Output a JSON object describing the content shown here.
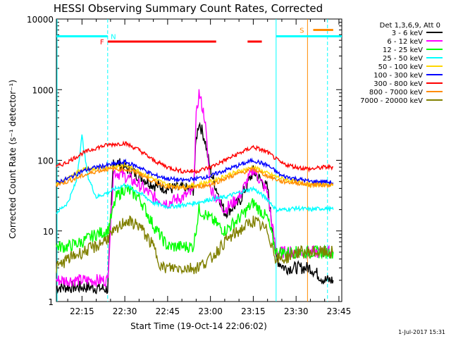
{
  "chart_data": {
    "type": "line",
    "title": "HESSI Observing Summary Count Rates, Corrected",
    "xlabel": "Start Time (19-Oct-14 22:06:02)",
    "ylabel": "Corrected Count Rate (s⁻¹ detector⁻¹)",
    "y_scale": "log",
    "ylim": [
      1,
      10000
    ],
    "xlim_minutes": [
      22.1,
      23.76
    ],
    "x_ticks": [
      "22:15",
      "22:30",
      "22:45",
      "23:00",
      "23:15",
      "23:30",
      "23:45"
    ],
    "y_ticks": [
      "1",
      "10",
      "100",
      "1000",
      "10000"
    ],
    "legend_title": "Det 1,3,6,9, Att 0",
    "legend_position": "top-right",
    "timestamp": "1-Jul-2017 15:31",
    "annotations": [
      {
        "label": "F",
        "color": "#ff0000"
      },
      {
        "label": "N",
        "color": "#00ffff"
      },
      {
        "label": "S",
        "color": "#ff8c00"
      }
    ],
    "flag_bars": [
      {
        "name": "F",
        "color": "#ff0000",
        "segments": [
          [
            "22:24",
            "23:02"
          ],
          [
            "23:13",
            "23:18"
          ]
        ],
        "y": 4800
      },
      {
        "name": "N",
        "color": "#00ffff",
        "segments": [
          [
            "22:06",
            "22:24"
          ],
          [
            "23:23",
            "23:46"
          ]
        ],
        "y": 5700
      },
      {
        "name": "S",
        "color": "#ff8c00",
        "segments": [
          [
            "23:36",
            "23:43"
          ]
        ],
        "y": 7000
      }
    ],
    "vlines": [
      {
        "time": "22:24",
        "color": "#00ffff",
        "style": "dashed"
      },
      {
        "time": "23:23",
        "color": "#00ffff",
        "style": "solid"
      },
      {
        "time": "23:34",
        "color": "#ff8c00",
        "style": "solid"
      },
      {
        "time": "23:41",
        "color": "#00ffff",
        "style": "dashed"
      }
    ],
    "series": [
      {
        "name": "3 - 6 keV",
        "color": "#000000",
        "x": [
          "22:06",
          "22:12",
          "22:18",
          "22:24",
          "22:26",
          "22:30",
          "22:35",
          "22:40",
          "22:45",
          "22:50",
          "22:54",
          "22:55",
          "22:56",
          "22:58",
          "23:00",
          "23:05",
          "23:10",
          "23:15",
          "23:20",
          "23:23",
          "23:26",
          "23:30",
          "23:35",
          "23:40",
          "23:43"
        ],
        "y": [
          1.6,
          1.6,
          1.6,
          1.5,
          100,
          80,
          60,
          45,
          40,
          40,
          38,
          200,
          350,
          200,
          70,
          18,
          25,
          70,
          40,
          4,
          3,
          3,
          3,
          2,
          2
        ]
      },
      {
        "name": "6 - 12 keV",
        "color": "#ff00ff",
        "x": [
          "22:06",
          "22:12",
          "22:18",
          "22:24",
          "22:26",
          "22:30",
          "22:35",
          "22:40",
          "22:45",
          "22:50",
          "22:54",
          "22:55",
          "22:56",
          "22:58",
          "23:00",
          "23:05",
          "23:10",
          "23:15",
          "23:20",
          "23:23",
          "23:26",
          "23:30",
          "23:35",
          "23:40",
          "23:43"
        ],
        "y": [
          2,
          2,
          2,
          2,
          70,
          60,
          45,
          30,
          25,
          30,
          35,
          400,
          900,
          400,
          40,
          20,
          30,
          75,
          35,
          5,
          5,
          5,
          5,
          5,
          5
        ]
      },
      {
        "name": "12 - 25 keV",
        "color": "#00ff00",
        "x": [
          "22:06",
          "22:10",
          "22:15",
          "22:20",
          "22:24",
          "22:27",
          "22:30",
          "22:35",
          "22:40",
          "22:45",
          "22:50",
          "22:54",
          "22:56",
          "23:00",
          "23:05",
          "23:10",
          "23:15",
          "23:20",
          "23:23",
          "23:26",
          "23:30",
          "23:35",
          "23:40",
          "23:43"
        ],
        "y": [
          6,
          6,
          7,
          9,
          10,
          30,
          40,
          30,
          12,
          6,
          6,
          6,
          20,
          15,
          10,
          15,
          25,
          15,
          5,
          5,
          5,
          5,
          5,
          5
        ]
      },
      {
        "name": "25 - 50 keV",
        "color": "#00ffff",
        "x": [
          "22:06",
          "22:10",
          "22:13",
          "22:15",
          "22:17",
          "22:20",
          "22:24",
          "22:27",
          "22:30",
          "22:35",
          "22:40",
          "22:45",
          "22:50",
          "22:55",
          "23:00",
          "23:05",
          "23:10",
          "23:15",
          "23:20",
          "23:23",
          "23:26",
          "23:30",
          "23:35",
          "23:40",
          "23:43"
        ],
        "y": [
          18,
          25,
          50,
          220,
          60,
          30,
          35,
          40,
          45,
          35,
          25,
          22,
          23,
          25,
          28,
          30,
          35,
          40,
          28,
          20,
          20,
          21,
          20,
          21,
          20
        ]
      },
      {
        "name": "50 - 100 keV",
        "color": "#ffd700",
        "x": [
          "22:06",
          "22:10",
          "22:15",
          "22:20",
          "22:24",
          "22:30",
          "22:35",
          "22:40",
          "22:45",
          "22:50",
          "22:55",
          "23:00",
          "23:05",
          "23:10",
          "23:15",
          "23:20",
          "23:25",
          "23:30",
          "23:35",
          "23:40",
          "23:43"
        ],
        "y": [
          45,
          55,
          75,
          75,
          80,
          85,
          70,
          55,
          45,
          42,
          45,
          50,
          60,
          70,
          80,
          65,
          55,
          50,
          45,
          45,
          45
        ]
      },
      {
        "name": "100 - 300 keV",
        "color": "#0000ff",
        "x": [
          "22:06",
          "22:10",
          "22:15",
          "22:20",
          "22:24",
          "22:30",
          "22:35",
          "22:40",
          "22:45",
          "22:50",
          "22:55",
          "23:00",
          "23:05",
          "23:10",
          "23:15",
          "23:20",
          "23:25",
          "23:30",
          "23:35",
          "23:40",
          "23:43"
        ],
        "y": [
          48,
          55,
          70,
          80,
          85,
          95,
          80,
          62,
          55,
          52,
          55,
          60,
          72,
          85,
          100,
          85,
          60,
          55,
          50,
          50,
          48
        ]
      },
      {
        "name": "300 - 800 keV",
        "color": "#ff0000",
        "x": [
          "22:06",
          "22:10",
          "22:15",
          "22:20",
          "22:24",
          "22:30",
          "22:35",
          "22:40",
          "22:45",
          "22:50",
          "22:55",
          "23:00",
          "23:05",
          "23:10",
          "23:15",
          "23:20",
          "23:25",
          "23:30",
          "23:35",
          "23:40",
          "23:43"
        ],
        "y": [
          80,
          95,
          125,
          150,
          165,
          175,
          140,
          100,
          80,
          70,
          70,
          80,
          100,
          125,
          155,
          130,
          90,
          80,
          75,
          80,
          80
        ]
      },
      {
        "name": "800 - 7000 keV",
        "color": "#ff8c00",
        "x": [
          "22:06",
          "22:10",
          "22:15",
          "22:20",
          "22:24",
          "22:30",
          "22:35",
          "22:40",
          "22:45",
          "22:50",
          "22:55",
          "23:00",
          "23:05",
          "23:10",
          "23:15",
          "23:20",
          "23:25",
          "23:30",
          "23:35",
          "23:40",
          "23:43"
        ],
        "y": [
          45,
          50,
          60,
          70,
          75,
          75,
          65,
          50,
          42,
          40,
          42,
          45,
          55,
          65,
          75,
          60,
          50,
          48,
          45,
          45,
          45
        ]
      },
      {
        "name": "7000 - 20000 keV",
        "color": "#808000",
        "x": [
          "22:06",
          "22:10",
          "22:15",
          "22:20",
          "22:24",
          "22:27",
          "22:30",
          "22:35",
          "22:40",
          "22:43",
          "22:50",
          "22:55",
          "23:00",
          "23:05",
          "23:10",
          "23:15",
          "23:20",
          "23:23",
          "23:26",
          "23:30",
          "23:35",
          "23:40",
          "23:43"
        ],
        "y": [
          3,
          4,
          5,
          6,
          8,
          10,
          14,
          12,
          6,
          3,
          3,
          3,
          4,
          7,
          10,
          14,
          10,
          4,
          4,
          5,
          5,
          5,
          5
        ]
      }
    ]
  }
}
